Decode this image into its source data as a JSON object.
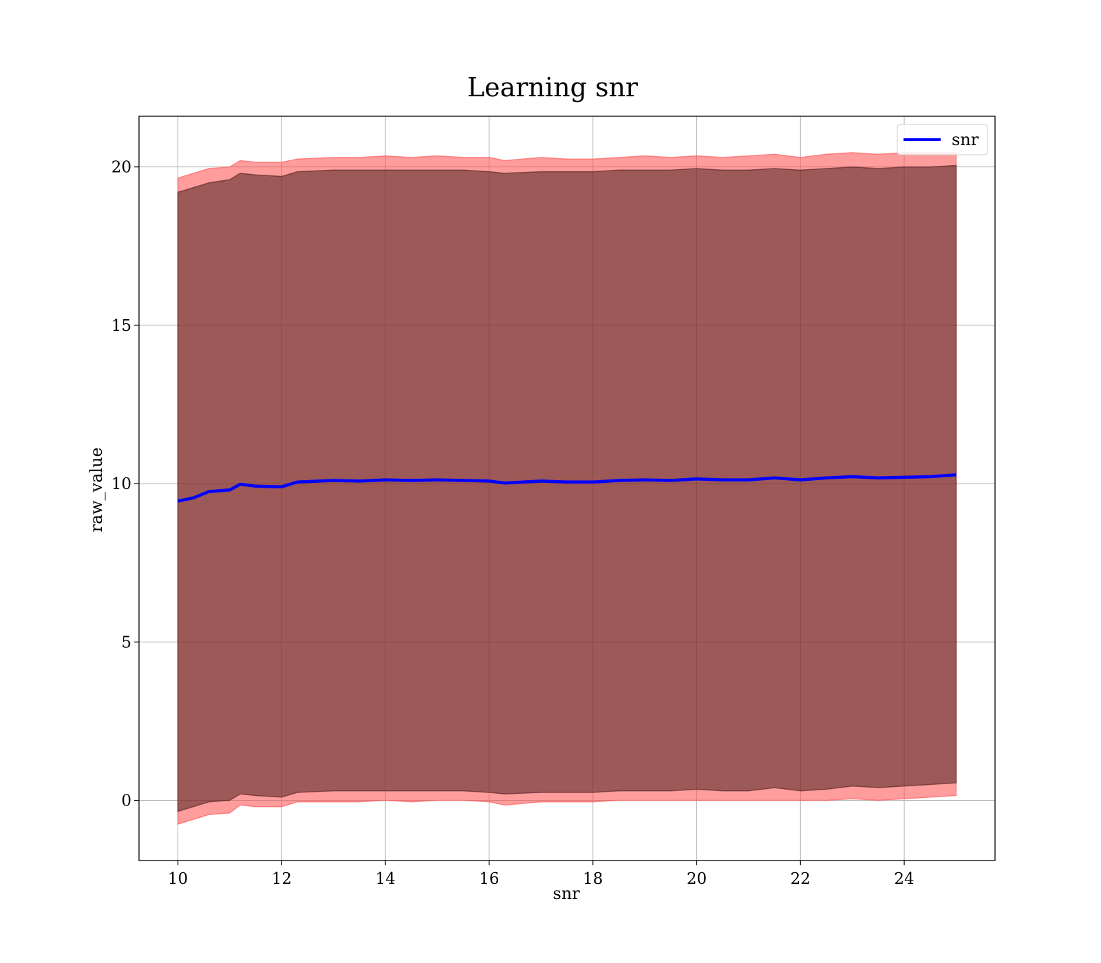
{
  "chart_data": {
    "type": "line",
    "title": "Learning snr",
    "xlabel": "snr",
    "ylabel": "raw_value",
    "xlim": [
      9.25,
      25.75
    ],
    "ylim": [
      -1.9,
      21.6
    ],
    "xticks": [
      10,
      12,
      14,
      16,
      18,
      20,
      22,
      24
    ],
    "yticks": [
      0,
      5,
      10,
      15,
      20
    ],
    "xtick_labels": [
      "10",
      "12",
      "14",
      "16",
      "18",
      "20",
      "22",
      "24"
    ],
    "ytick_labels": [
      "0",
      "5",
      "10",
      "15",
      "20"
    ],
    "grid": true,
    "legend": {
      "position": "top-right",
      "entries": [
        "snr"
      ]
    },
    "series": [
      {
        "name": "snr",
        "color": "#0000ff",
        "x": [
          10.0,
          10.3,
          10.6,
          11.0,
          11.2,
          11.5,
          12.0,
          12.3,
          13.0,
          13.5,
          14.0,
          14.5,
          15.0,
          15.5,
          16.0,
          16.3,
          17.0,
          17.5,
          18.0,
          18.5,
          19.0,
          19.5,
          20.0,
          20.5,
          21.0,
          21.5,
          22.0,
          22.5,
          23.0,
          23.5,
          24.0,
          24.5,
          25.0
        ],
        "y": [
          9.45,
          9.55,
          9.75,
          9.8,
          9.98,
          9.92,
          9.9,
          10.05,
          10.1,
          10.08,
          10.12,
          10.1,
          10.12,
          10.1,
          10.08,
          10.02,
          10.08,
          10.05,
          10.05,
          10.1,
          10.12,
          10.1,
          10.15,
          10.12,
          10.12,
          10.18,
          10.12,
          10.18,
          10.22,
          10.18,
          10.2,
          10.22,
          10.28
        ]
      }
    ],
    "bands": [
      {
        "color": "#ff4d4d",
        "opacity": 0.55,
        "lower": [
          -0.75,
          -0.6,
          -0.45,
          -0.4,
          -0.15,
          -0.2,
          -0.2,
          -0.05,
          -0.05,
          -0.05,
          0.0,
          -0.05,
          0.0,
          0.0,
          -0.05,
          -0.15,
          -0.05,
          -0.05,
          -0.05,
          0.0,
          0.0,
          0.0,
          0.0,
          0.0,
          0.0,
          0.0,
          0.0,
          0.0,
          0.05,
          0.0,
          0.05,
          0.1,
          0.15
        ],
        "upper": [
          19.65,
          19.8,
          19.95,
          20.0,
          20.2,
          20.15,
          20.15,
          20.25,
          20.3,
          20.3,
          20.35,
          20.3,
          20.35,
          20.3,
          20.3,
          20.2,
          20.3,
          20.25,
          20.25,
          20.3,
          20.35,
          20.3,
          20.35,
          20.3,
          20.35,
          20.4,
          20.3,
          20.4,
          20.45,
          20.4,
          20.45,
          20.45,
          20.45
        ]
      },
      {
        "color": "#4d1f1f",
        "opacity": 0.55,
        "lower": [
          -0.35,
          -0.2,
          -0.05,
          0.0,
          0.2,
          0.15,
          0.1,
          0.25,
          0.3,
          0.3,
          0.3,
          0.3,
          0.3,
          0.3,
          0.25,
          0.2,
          0.25,
          0.25,
          0.25,
          0.3,
          0.3,
          0.3,
          0.35,
          0.3,
          0.3,
          0.4,
          0.3,
          0.35,
          0.45,
          0.4,
          0.45,
          0.5,
          0.55
        ],
        "upper": [
          19.2,
          19.35,
          19.5,
          19.6,
          19.8,
          19.75,
          19.7,
          19.85,
          19.9,
          19.9,
          19.9,
          19.9,
          19.9,
          19.9,
          19.85,
          19.8,
          19.85,
          19.85,
          19.85,
          19.9,
          19.9,
          19.9,
          19.95,
          19.9,
          19.9,
          19.95,
          19.9,
          19.95,
          20.0,
          19.95,
          20.0,
          20.0,
          20.05
        ]
      }
    ]
  }
}
